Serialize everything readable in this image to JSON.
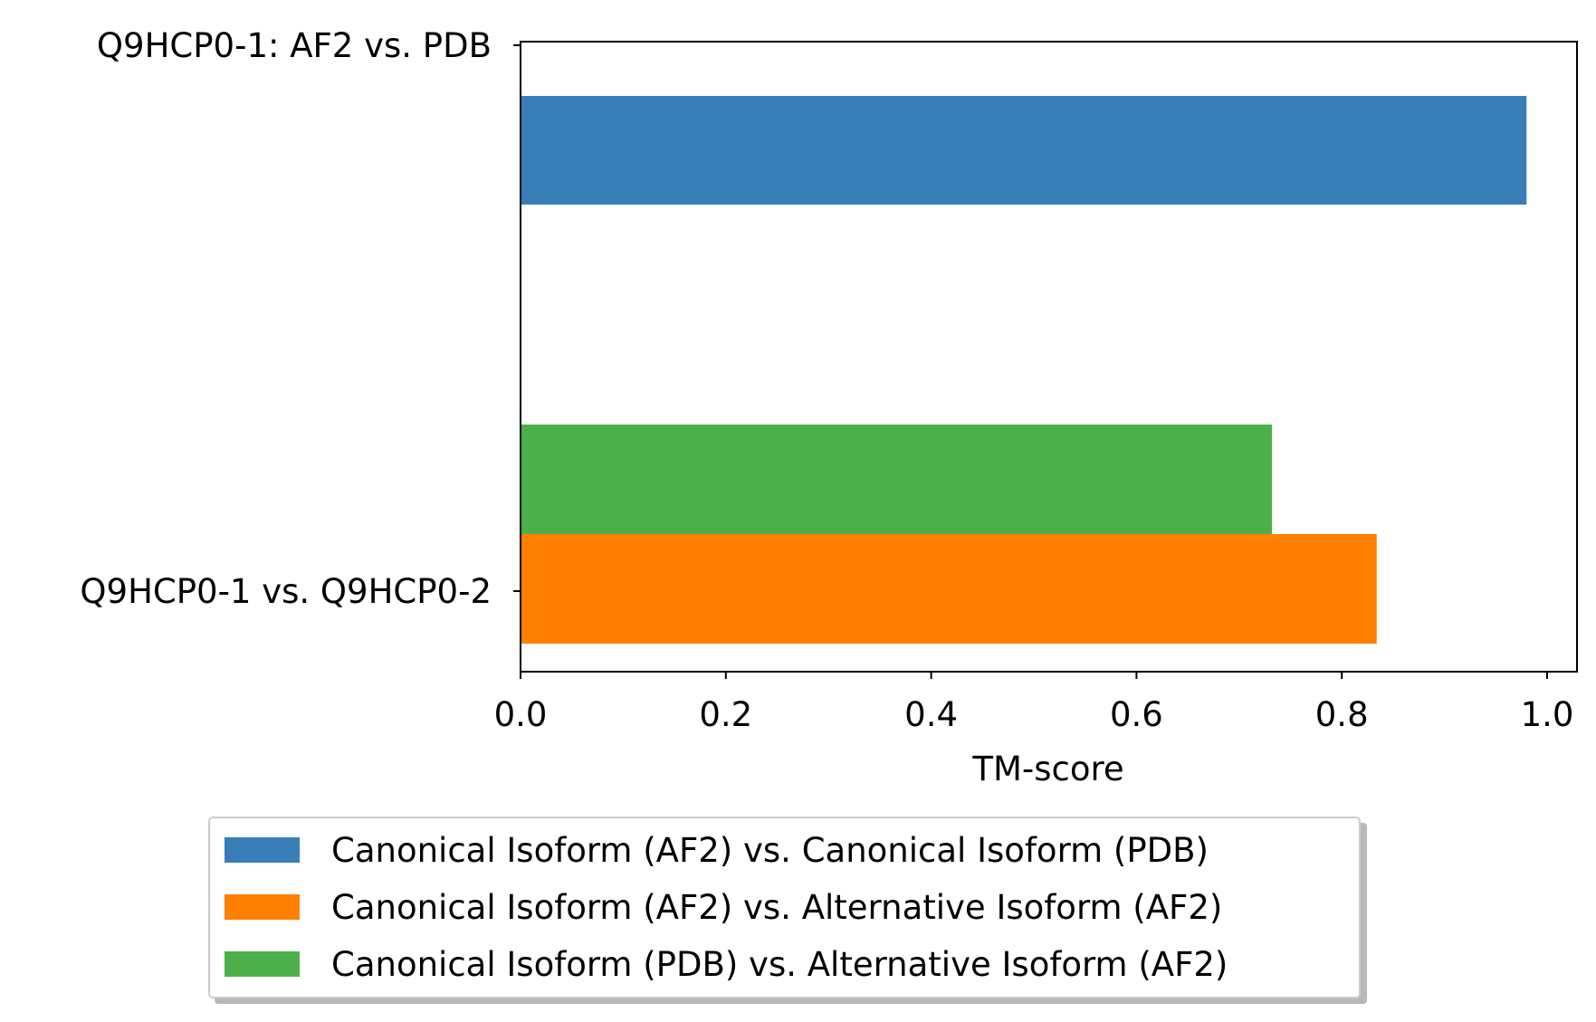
{
  "chart_data": {
    "type": "bar",
    "orientation": "horizontal",
    "categories": [
      "Q9HCP0-1: AF2 vs. PDB",
      "Q9HCP0-1 vs. Q9HCP0-2"
    ],
    "series": [
      {
        "name": "Canonical Isoform (AF2) vs. Canonical Isoform (PDB)",
        "color": "#377eb8",
        "values": [
          0.98,
          null
        ]
      },
      {
        "name": "Canonical Isoform (AF2) vs. Alternative Isoform (AF2)",
        "color": "#ff7f00",
        "values": [
          null,
          0.834
        ]
      },
      {
        "name": "Canonical Isoform (PDB) vs. Alternative Isoform (AF2)",
        "color": "#4daf4a",
        "values": [
          null,
          0.732
        ]
      }
    ],
    "xlabel": "TM-score",
    "ylabel": "",
    "xlim": [
      0,
      1.03
    ],
    "xticks": [
      "0.0",
      "0.2",
      "0.4",
      "0.6",
      "0.8",
      "1.0"
    ],
    "grid": false,
    "legend_placement": "bottom-center, below axes"
  }
}
